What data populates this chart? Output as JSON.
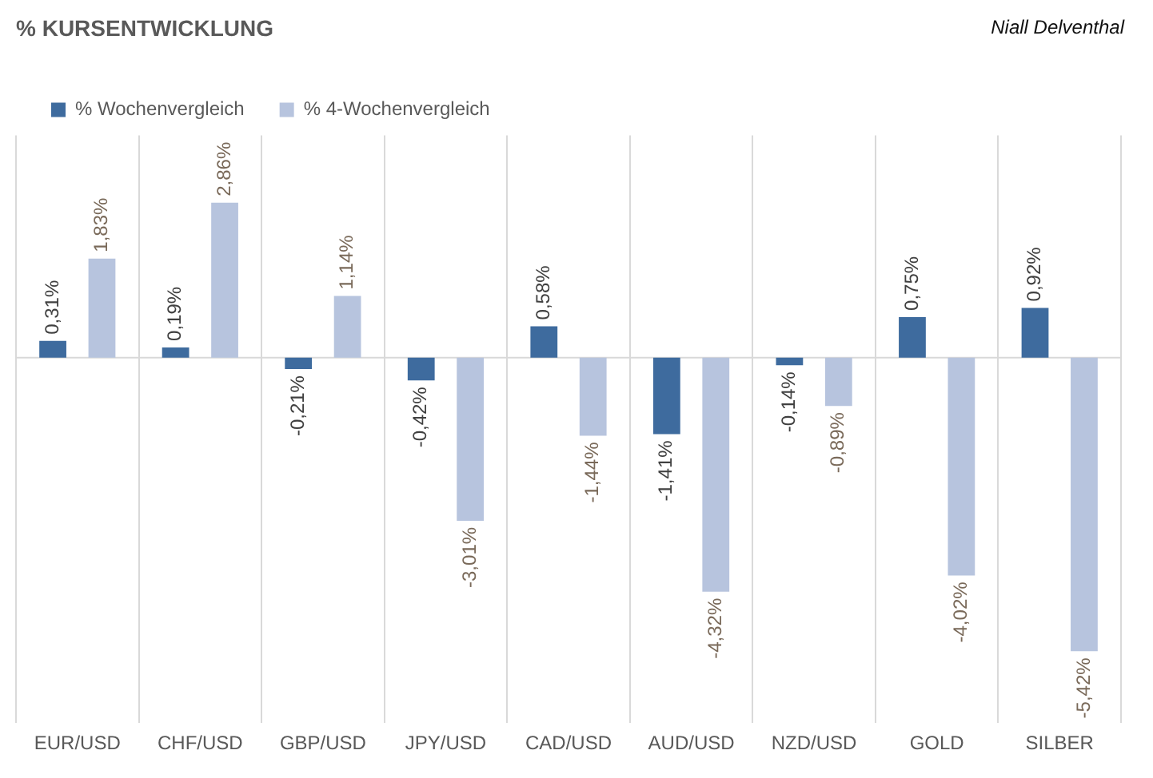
{
  "chart_data": {
    "type": "bar",
    "title": "% KURSENTWICKLUNG",
    "annotations": [
      "Niall Delventhal"
    ],
    "categories": [
      "EUR/USD",
      "CHF/USD",
      "GBP/USD",
      "JPY/USD",
      "CAD/USD",
      "AUD/USD",
      "NZD/USD",
      "GOLD",
      "SILBER"
    ],
    "series": [
      {
        "name": "% Wochenvergleich",
        "color": "#3e6b9e",
        "values": [
          0.31,
          0.19,
          -0.21,
          -0.42,
          0.58,
          -1.41,
          -0.14,
          0.75,
          0.92
        ],
        "value_labels": [
          "0,31%",
          "0,19%",
          "-0,21%",
          "-0,42%",
          "0,58%",
          "-1,41%",
          "-0,14%",
          "0,75%",
          "0,92%"
        ]
      },
      {
        "name": "% 4-Wochenvergleich",
        "color": "#b7c4de",
        "values": [
          1.83,
          2.86,
          1.14,
          -3.01,
          -1.44,
          -4.32,
          -0.89,
          -4.02,
          -5.42
        ],
        "value_labels": [
          "1,83%",
          "2,86%",
          "1,14%",
          "-3,01%",
          "-1,44%",
          "-4,32%",
          "-0,89%",
          "-4,02%",
          "-5,42%"
        ]
      }
    ],
    "grid": "x",
    "legend": "top left"
  }
}
